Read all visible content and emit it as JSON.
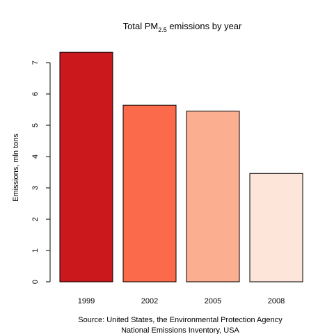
{
  "chart_data": {
    "type": "bar",
    "title_main": "Total PM",
    "title_subscript": "2.5",
    "title_rest": " emissions by year",
    "xlabel": "",
    "ylabel": "Emissions, mln tons",
    "categories": [
      "1999",
      "2002",
      "2005",
      "2008"
    ],
    "values": [
      7.33,
      5.64,
      5.45,
      3.46
    ],
    "ylim": [
      0,
      7.6
    ],
    "yticks": [
      0,
      1,
      2,
      3,
      4,
      5,
      6,
      7
    ],
    "colors": [
      "#cb181d",
      "#fb6a4a",
      "#fcae91",
      "#fee5d9"
    ],
    "grid": false,
    "source_line1": "Source: United States, the Environmental Protection Agency",
    "source_line2": "National Emissions Inventory, USA"
  }
}
